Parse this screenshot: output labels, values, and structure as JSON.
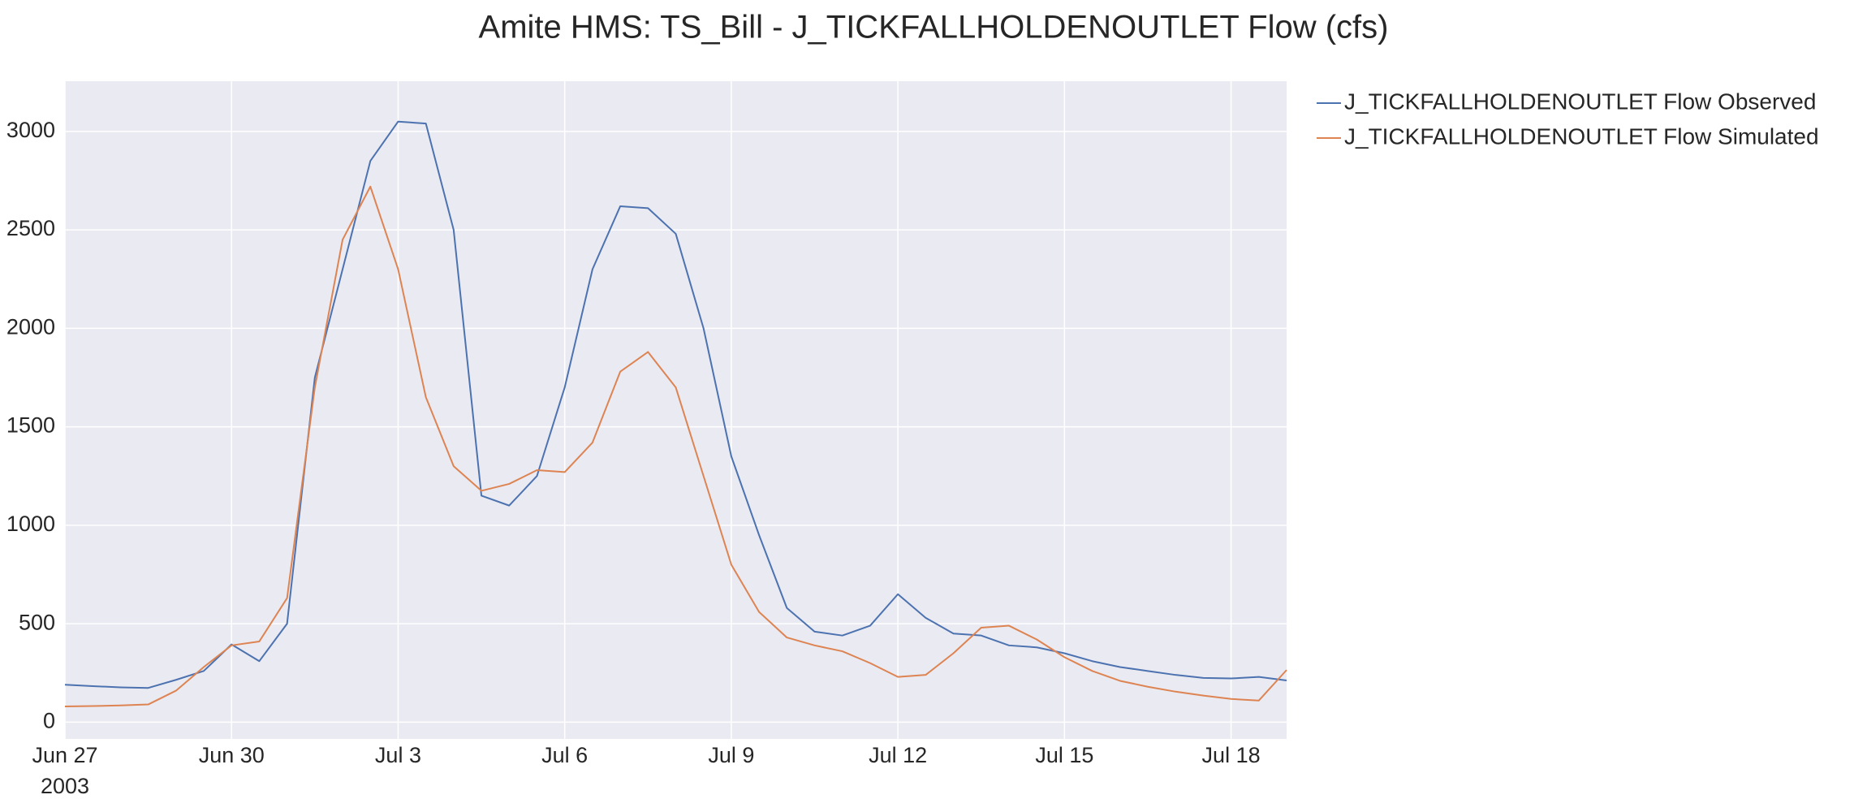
{
  "chart_data": {
    "type": "line",
    "title": "Amite HMS: TS_Bill - J_TICKFALLHOLDENOUTLET Flow (cfs)",
    "x": [
      "2003-06-27T00:00",
      "2003-06-27T12:00",
      "2003-06-28T00:00",
      "2003-06-28T12:00",
      "2003-06-29T00:00",
      "2003-06-29T12:00",
      "2003-06-30T00:00",
      "2003-06-30T12:00",
      "2003-07-01T00:00",
      "2003-07-01T12:00",
      "2003-07-02T00:00",
      "2003-07-02T12:00",
      "2003-07-03T00:00",
      "2003-07-03T12:00",
      "2003-07-04T00:00",
      "2003-07-04T12:00",
      "2003-07-05T00:00",
      "2003-07-05T12:00",
      "2003-07-06T00:00",
      "2003-07-06T12:00",
      "2003-07-07T00:00",
      "2003-07-07T12:00",
      "2003-07-08T00:00",
      "2003-07-08T12:00",
      "2003-07-09T00:00",
      "2003-07-09T12:00",
      "2003-07-10T00:00",
      "2003-07-10T12:00",
      "2003-07-11T00:00",
      "2003-07-11T12:00",
      "2003-07-12T00:00",
      "2003-07-12T12:00",
      "2003-07-13T00:00",
      "2003-07-13T12:00",
      "2003-07-14T00:00",
      "2003-07-14T12:00",
      "2003-07-15T00:00",
      "2003-07-15T12:00",
      "2003-07-16T00:00",
      "2003-07-16T12:00",
      "2003-07-17T00:00",
      "2003-07-17T12:00",
      "2003-07-18T00:00",
      "2003-07-18T12:00",
      "2003-07-19T00:00"
    ],
    "series": [
      {
        "name": "J_TICKFALLHOLDENOUTLET Flow Observed",
        "color": "#4c72b0",
        "values": [
          190,
          183,
          177,
          174,
          215,
          260,
          395,
          310,
          500,
          1750,
          2300,
          2850,
          3050,
          3040,
          2500,
          1150,
          1100,
          1250,
          1700,
          2300,
          2620,
          2610,
          2480,
          2000,
          1350,
          950,
          580,
          460,
          440,
          490,
          650,
          530,
          450,
          440,
          390,
          380,
          350,
          310,
          280,
          260,
          240,
          225,
          222,
          230,
          212
        ]
      },
      {
        "name": "J_TICKFALLHOLDENOUTLET Flow Simulated",
        "color": "#dd8452",
        "values": [
          80,
          82,
          85,
          90,
          160,
          280,
          390,
          410,
          630,
          1700,
          2450,
          2720,
          2300,
          1650,
          1300,
          1175,
          1210,
          1280,
          1270,
          1420,
          1780,
          1880,
          1700,
          1250,
          800,
          560,
          430,
          390,
          360,
          300,
          230,
          240,
          350,
          480,
          490,
          420,
          330,
          260,
          210,
          180,
          155,
          135,
          118,
          110,
          265
        ]
      }
    ],
    "xlim": [
      "2003-06-27",
      "2003-07-19"
    ],
    "xticks": [
      {
        "value": "2003-06-27",
        "label": "Jun 27"
      },
      {
        "value": "2003-06-30",
        "label": "Jun 30"
      },
      {
        "value": "2003-07-03",
        "label": "Jul 3"
      },
      {
        "value": "2003-07-06",
        "label": "Jul 6"
      },
      {
        "value": "2003-07-09",
        "label": "Jul 9"
      },
      {
        "value": "2003-07-12",
        "label": "Jul 12"
      },
      {
        "value": "2003-07-15",
        "label": "Jul 15"
      },
      {
        "value": "2003-07-18",
        "label": "Jul 18"
      }
    ],
    "xtick_year": "2003",
    "ylim": [
      -85,
      3255
    ],
    "yticks": [
      0,
      500,
      1000,
      1500,
      2000,
      2500,
      3000
    ],
    "grid": true,
    "legend": "outside-right"
  }
}
